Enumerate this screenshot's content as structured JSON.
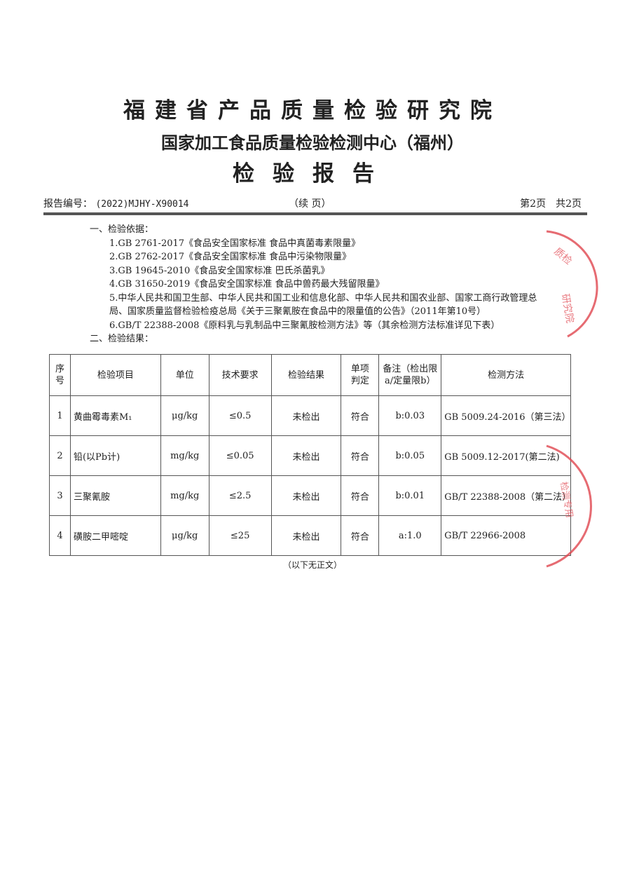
{
  "header": {
    "title1": "福建省产品质量检验研究院",
    "title2": "国家加工食品质量检验检测中心（福州）",
    "title3": "检验报告",
    "report_no_label": "报告编号：",
    "report_no": "(2022)MJHY-X90014",
    "continued": "（续 页）",
    "page_info": "第2页　共2页"
  },
  "basis": {
    "heading": "一、检验依据：",
    "items": [
      "1.GB 2761-2017《食品安全国家标准 食品中真菌毒素限量》",
      "2.GB 2762-2017《食品安全国家标准 食品中污染物限量》",
      "3.GB 19645-2010《食品安全国家标准 巴氏杀菌乳》",
      "4.GB 31650-2019《食品安全国家标准 食品中兽药最大残留限量》",
      "5.中华人民共和国卫生部、中华人民共和国工业和信息化部、中华人民共和国农业部、国家工商行政管理总局、国家质量监督检验检疫总局《关于三聚氰胺在食品中的限量值的公告》（2011年第10号）",
      "6.GB/T 22388-2008《原料乳与乳制品中三聚氰胺检测方法》等（其余检测方法标准详见下表）"
    ]
  },
  "results": {
    "heading": "二、检验结果：",
    "columns": [
      "序号",
      "检验项目",
      "单位",
      "技术要求",
      "检验结果",
      "单项判定",
      "备注（检出限a/定量限b）",
      "检测方法"
    ],
    "rows": [
      [
        "1",
        "黄曲霉毒素M₁",
        "μg/kg",
        "≤0.5",
        "未检出",
        "符合",
        "b:0.03",
        "GB 5009.24-2016（第三法）"
      ],
      [
        "2",
        "铅(以Pb计)",
        "mg/kg",
        "≤0.05",
        "未检出",
        "符合",
        "b:0.05",
        "GB 5009.12-2017(第二法)"
      ],
      [
        "3",
        "三聚氰胺",
        "mg/kg",
        "≤2.5",
        "未检出",
        "符合",
        "b:0.01",
        "GB/T 22388-2008（第二法）"
      ],
      [
        "4",
        "磺胺二甲嘧啶",
        "μg/kg",
        "≤25",
        "未检出",
        "符合",
        "a:1.0",
        "GB/T 22966-2008"
      ]
    ]
  },
  "footer": "（以下无正文）",
  "stamps": {
    "color": "#e0464f",
    "text1": "质量检验研究院",
    "text2": "检验检测专用"
  }
}
